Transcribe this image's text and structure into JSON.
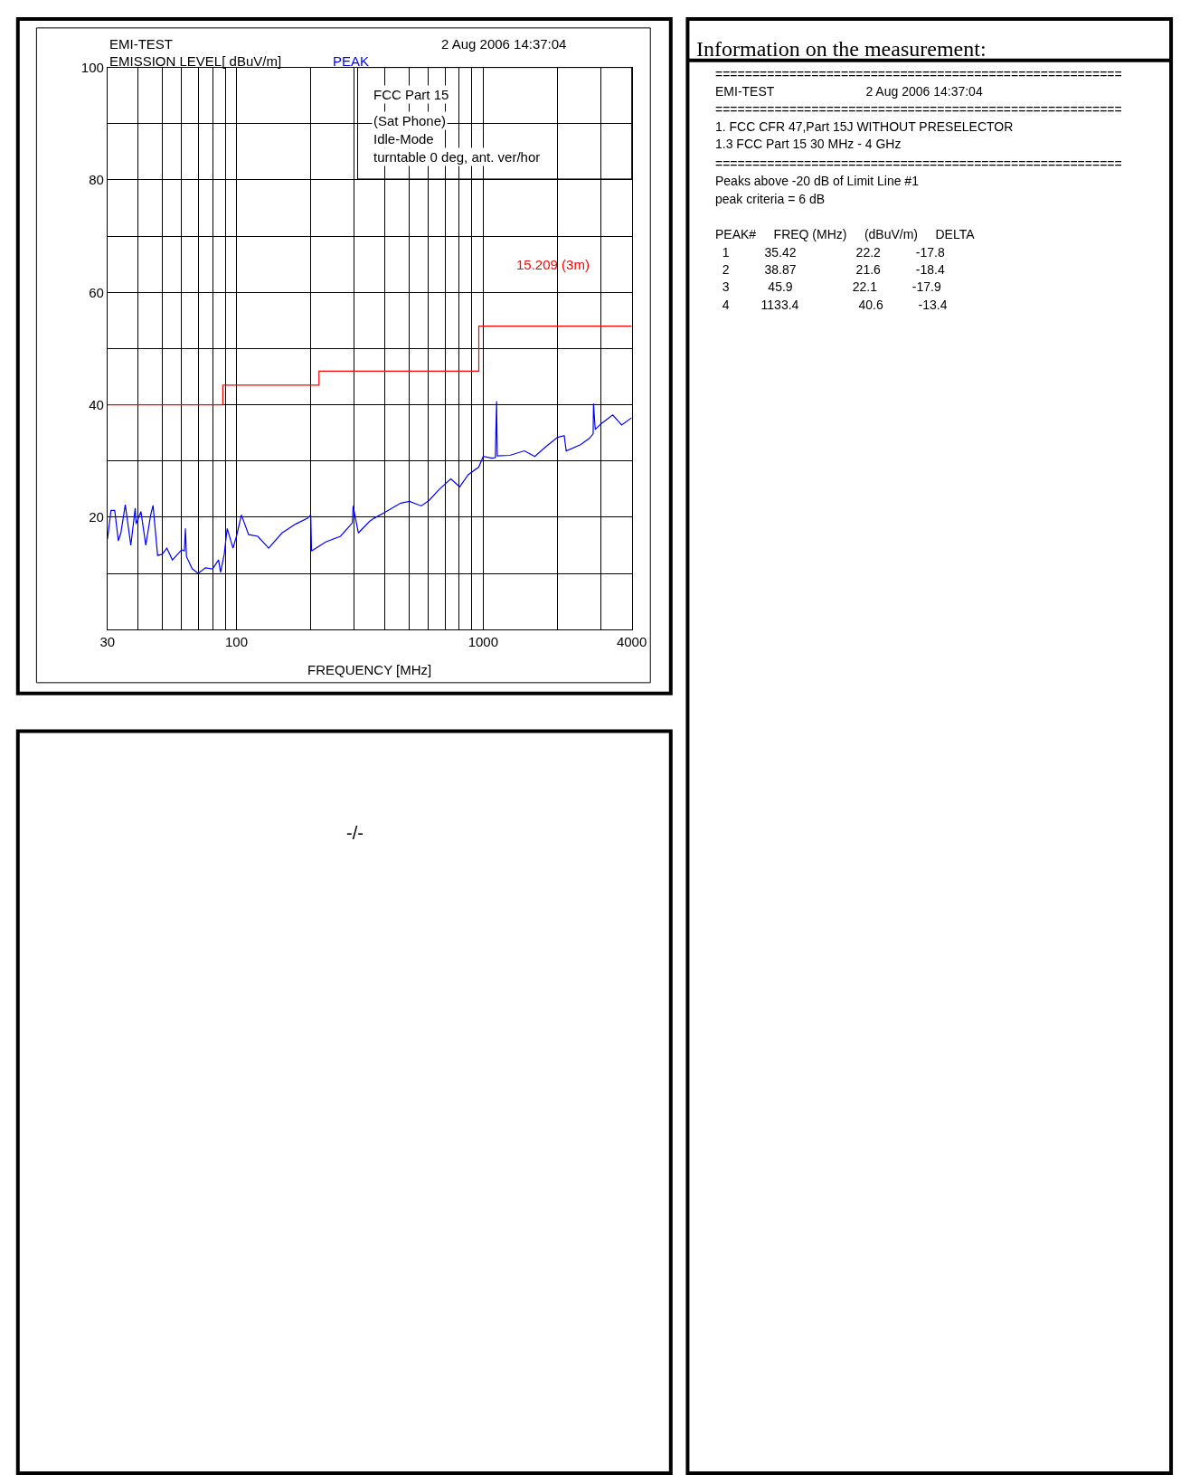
{
  "chart_data": [
    {
      "type": "line",
      "title": "EMI-TEST",
      "subtitle": "2 Aug 2006 14:37:04",
      "xlabel": "FREQUENCY [MHz]",
      "ylabel": "EMISSION LEVEL[ dBuV/m]",
      "annotations": [
        "FCC Part 15",
        "(Sat Phone)",
        "Idle-Mode",
        "turntable 0 deg, ant. ver/hor"
      ],
      "log": "x",
      "grid": true,
      "xlim": [
        30,
        4000
      ],
      "ylim": [
        0,
        100
      ],
      "xticks": [
        30,
        {
          "value": 40,
          "label": null
        },
        {
          "value": 50,
          "label": null
        },
        {
          "value": 60,
          "label": null
        },
        {
          "value": 70,
          "label": null
        },
        {
          "value": 80,
          "label": null
        },
        {
          "value": 90,
          "label": null
        },
        100,
        {
          "value": 200,
          "label": null
        },
        {
          "value": 300,
          "label": null
        },
        {
          "value": 400,
          "label": null
        },
        {
          "value": 500,
          "label": null
        },
        {
          "value": 600,
          "label": null
        },
        {
          "value": 700,
          "label": null
        },
        {
          "value": 800,
          "label": null
        },
        {
          "value": 900,
          "label": null
        },
        1000,
        {
          "value": 2000,
          "label": null
        },
        {
          "value": 3000,
          "label": null
        },
        4000
      ],
      "yticks": [
        {
          "value": 0,
          "label": null
        },
        {
          "value": 10,
          "label": null
        },
        20,
        {
          "value": 30,
          "label": null
        },
        40,
        {
          "value": 50,
          "label": null
        },
        60,
        {
          "value": 70,
          "label": null
        },
        80,
        {
          "value": 90,
          "label": null
        },
        100
      ],
      "series": [
        {
          "name": "PEAK",
          "type": "line",
          "color": "#0000ff",
          "x": [
            30,
            31,
            32.1,
            33.2,
            34.0,
            35.42,
            37.3,
            38.87,
            39.2,
            41.0,
            42.9,
            44.9,
            45.9,
            47.9,
            50.0,
            52.2,
            55.0,
            60,
            61.5,
            62.1,
            62.7,
            66.2,
            70,
            74.8,
            80,
            84.6,
            86.2,
            89.2,
            91.7,
            96.8,
            100,
            104.7,
            112,
            122,
            135,
            153,
            174,
            194,
            200,
            201.5,
            230,
            264,
            295,
            297,
            312,
            347,
            361,
            401,
            463,
            503,
            561,
            604,
            662,
            739,
            803,
            871,
            959,
            1000,
            1086,
            1120,
            1133.4,
            1140,
            1281,
            1469,
            1618,
            1780,
            2000,
            2130,
            2170,
            2480,
            2690,
            2790,
            2800,
            2845,
            3000,
            3350,
            3640,
            4000
          ],
          "values": [
            16.1,
            21.2,
            21.2,
            15.8,
            17.2,
            22.2,
            15.0,
            21.6,
            18.8,
            21.0,
            15.0,
            20.4,
            22.1,
            13.2,
            13.4,
            14.5,
            12.4,
            14.2,
            14.0,
            18.0,
            13.0,
            10.8,
            10.0,
            11.0,
            10.8,
            12.4,
            10.2,
            13.4,
            18.0,
            14.5,
            16.6,
            20.4,
            16.9,
            16.6,
            14.5,
            17.2,
            18.8,
            19.8,
            20.4,
            14.0,
            15.6,
            16.6,
            19.0,
            22.0,
            17.2,
            19.3,
            19.8,
            20.9,
            22.5,
            22.8,
            22.0,
            23.0,
            24.9,
            26.8,
            25.4,
            27.6,
            28.9,
            30.8,
            30.5,
            30.6,
            40.6,
            30.9,
            31.0,
            31.8,
            30.8,
            32.4,
            34.2,
            34.5,
            31.8,
            32.9,
            34.0,
            34.8,
            40.2,
            35.6,
            36.6,
            38.2,
            36.4,
            37.7
          ]
        },
        {
          "name": "15.209 (3m)",
          "type": "step",
          "color": "#ff0000",
          "x": [
            30,
            88,
            216,
            960,
            4000
          ],
          "values": [
            40,
            43.5,
            46,
            54,
            54
          ]
        }
      ]
    },
    {
      "type": "other",
      "title": "Information on the measurement:",
      "annotations": [
        "=======================================================",
        "EMI-TEST\t2 Aug 2006 14:37:04",
        "=======================================================",
        "1. FCC CFR 47,Part 15J WITHOUT PRESELECTOR",
        "1.3 FCC Part 15 30 MHz - 4 GHz",
        "=======================================================",
        "Peaks above -20 dB of Limit Line #1",
        "peak criteria = 6 dB",
        "PEAK#\tFREQ (MHz)\t(dBuV/m)\tDELTA",
        "1\t35.42\t22.2\t-17.8",
        "2\t38.87\t21.6\t-18.4",
        "3\t45.9\t22.1\t-17.9",
        "4\t1133.4\t40.6\t-13.4"
      ]
    },
    {
      "type": "other",
      "annotations": [
        "-/-"
      ]
    }
  ]
}
